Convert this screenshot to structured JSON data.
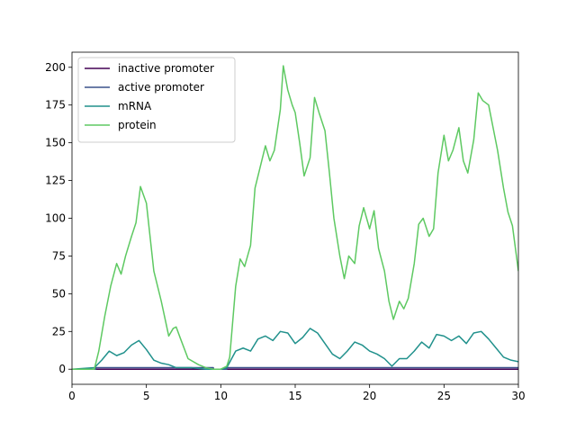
{
  "chart_data": {
    "type": "line",
    "xlim": [
      0,
      30
    ],
    "ylim": [
      -10,
      210
    ],
    "x_ticks": [
      0,
      5,
      10,
      15,
      20,
      25,
      30
    ],
    "y_ticks": [
      0,
      25,
      50,
      75,
      100,
      125,
      150,
      175,
      200
    ],
    "x_tick_labels": [
      "0",
      "5",
      "10",
      "15",
      "20",
      "25",
      "30"
    ],
    "y_tick_labels": [
      "0",
      "25",
      "50",
      "75",
      "100",
      "125",
      "150",
      "175",
      "200"
    ],
    "grid": false,
    "legend_position": "upper-left",
    "series": [
      {
        "name": "inactive promoter",
        "color": "#440154",
        "x": [
          0,
          30
        ],
        "y": [
          0,
          0
        ]
      },
      {
        "name": "active promoter",
        "color": "#3b528b",
        "x": [
          0,
          1.6,
          1.6,
          9.5,
          9.5,
          10.4,
          10.4,
          30
        ],
        "y": [
          0,
          0,
          1,
          1,
          0,
          0,
          1,
          1
        ]
      },
      {
        "name": "mRNA",
        "color": "#21918c",
        "x": [
          0,
          1.5,
          2.0,
          2.5,
          3.0,
          3.5,
          4.0,
          4.5,
          5.0,
          5.5,
          6.0,
          6.5,
          7.0,
          8.0,
          9.0,
          10.0,
          10.4,
          11.0,
          11.5,
          12.0,
          12.5,
          13.0,
          13.5,
          14.0,
          14.5,
          15.0,
          15.5,
          16.0,
          16.5,
          17.0,
          17.5,
          18.0,
          18.5,
          19.0,
          19.5,
          20.0,
          20.5,
          21.0,
          21.5,
          22.0,
          22.5,
          23.0,
          23.5,
          24.0,
          24.5,
          25.0,
          25.5,
          26.0,
          26.5,
          27.0,
          27.5,
          28.0,
          28.5,
          29.0,
          29.5,
          30.0
        ],
        "y": [
          0,
          1,
          6,
          12,
          9,
          11,
          16,
          19,
          13,
          6,
          4,
          3,
          1,
          1,
          0,
          0,
          1,
          12,
          14,
          12,
          20,
          22,
          19,
          25,
          24,
          17,
          21,
          27,
          24,
          17,
          10,
          7,
          12,
          18,
          16,
          12,
          10,
          7,
          2,
          7,
          7,
          12,
          18,
          14,
          23,
          22,
          19,
          22,
          17,
          24,
          25,
          20,
          14,
          8,
          6,
          5
        ]
      },
      {
        "name": "protein",
        "color": "#5ec962",
        "x": [
          0,
          1.5,
          1.8,
          2.2,
          2.6,
          3.0,
          3.3,
          3.6,
          4.0,
          4.3,
          4.6,
          5.0,
          5.5,
          6.0,
          6.5,
          6.8,
          7.0,
          7.3,
          7.8,
          8.5,
          9.0,
          9.5,
          10.0,
          10.4,
          10.6,
          11.0,
          11.3,
          11.6,
          12.0,
          12.3,
          12.6,
          13.0,
          13.3,
          13.6,
          14.0,
          14.2,
          14.5,
          14.8,
          15.0,
          15.3,
          15.6,
          16.0,
          16.3,
          16.6,
          17.0,
          17.3,
          17.6,
          18.0,
          18.3,
          18.6,
          19.0,
          19.3,
          19.6,
          20.0,
          20.3,
          20.6,
          21.0,
          21.3,
          21.6,
          22.0,
          22.3,
          22.6,
          23.0,
          23.3,
          23.6,
          24.0,
          24.3,
          24.6,
          25.0,
          25.3,
          25.6,
          26.0,
          26.3,
          26.6,
          27.0,
          27.3,
          27.6,
          28.0,
          28.3,
          28.6,
          29.0,
          29.3,
          29.6,
          30.0
        ],
        "y": [
          0,
          0,
          12,
          35,
          55,
          70,
          63,
          75,
          88,
          97,
          121,
          110,
          65,
          45,
          22,
          27,
          28,
          20,
          7,
          3,
          1,
          0,
          0,
          2,
          8,
          55,
          73,
          68,
          82,
          120,
          132,
          148,
          138,
          145,
          172,
          201,
          185,
          175,
          170,
          150,
          128,
          140,
          180,
          170,
          158,
          130,
          100,
          75,
          60,
          75,
          70,
          95,
          107,
          93,
          105,
          80,
          65,
          45,
          33,
          45,
          40,
          47,
          70,
          96,
          100,
          88,
          93,
          130,
          155,
          138,
          145,
          160,
          138,
          130,
          152,
          183,
          178,
          175,
          160,
          145,
          120,
          104,
          95,
          65
        ]
      }
    ]
  }
}
